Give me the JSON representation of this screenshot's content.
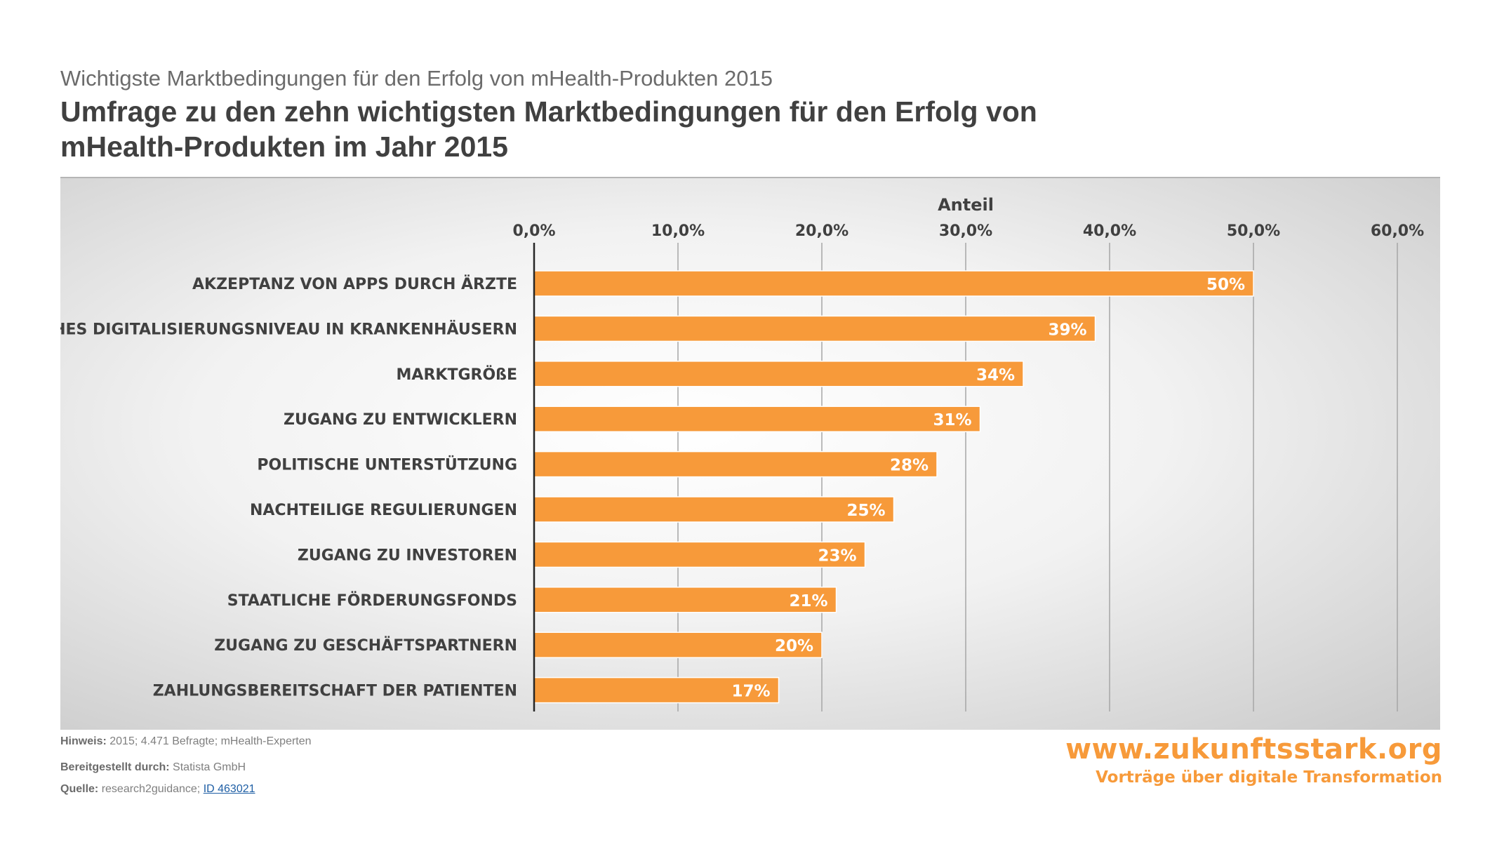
{
  "header": {
    "subtitle": "Wichtigste Marktbedingungen für den Erfolg von mHealth-Produkten 2015",
    "title": "Umfrage zu den zehn wichtigsten Marktbedingungen für den Erfolg von mHealth-Produkten im Jahr 2015"
  },
  "chart_data": {
    "type": "bar",
    "orientation": "horizontal",
    "xlabel": "Anteil",
    "xlim": [
      0,
      60
    ],
    "x_ticks": [
      "0,0%",
      "10,0%",
      "20,0%",
      "30,0%",
      "40,0%",
      "50,0%",
      "60,0%"
    ],
    "categories": [
      "AKZEPTANZ VON APPS DURCH ÄRZTE",
      "HOHES DIGITALISIERUNGSNIVEAU IN KRANKENHÄUSERN",
      "MARKTGRÖßE",
      "ZUGANG ZU ENTWICKLERN",
      "POLITISCHE UNTERSTÜTZUNG",
      "NACHTEILIGE REGULIERUNGEN",
      "ZUGANG ZU INVESTOREN",
      "STAATLICHE FÖRDERUNGSFONDS",
      "ZUGANG ZU GESCHÄFTSPARTNERN",
      "ZAHLUNGSBEREITSCHAFT DER PATIENTEN"
    ],
    "values": [
      50,
      39,
      34,
      31,
      28,
      25,
      23,
      21,
      20,
      17
    ],
    "value_labels": [
      "50%",
      "39%",
      "34%",
      "31%",
      "28%",
      "25%",
      "23%",
      "21%",
      "20%",
      "17%"
    ],
    "bar_color": "#f79a3a",
    "grid": true,
    "axis_position": "top"
  },
  "footer": {
    "note_label": "Hinweis:",
    "note_text": "2015; 4.471 Befragte; mHealth-Experten",
    "provided_label": "Bereitgestellt durch:",
    "provided_text": "Statista GmbH",
    "source_label": "Quelle:",
    "source_text": "research2guidance;",
    "source_link": "ID 463021"
  },
  "brand": {
    "url": "www.zukunftsstark.org",
    "tagline": "Vorträge über digitale Transformation"
  }
}
